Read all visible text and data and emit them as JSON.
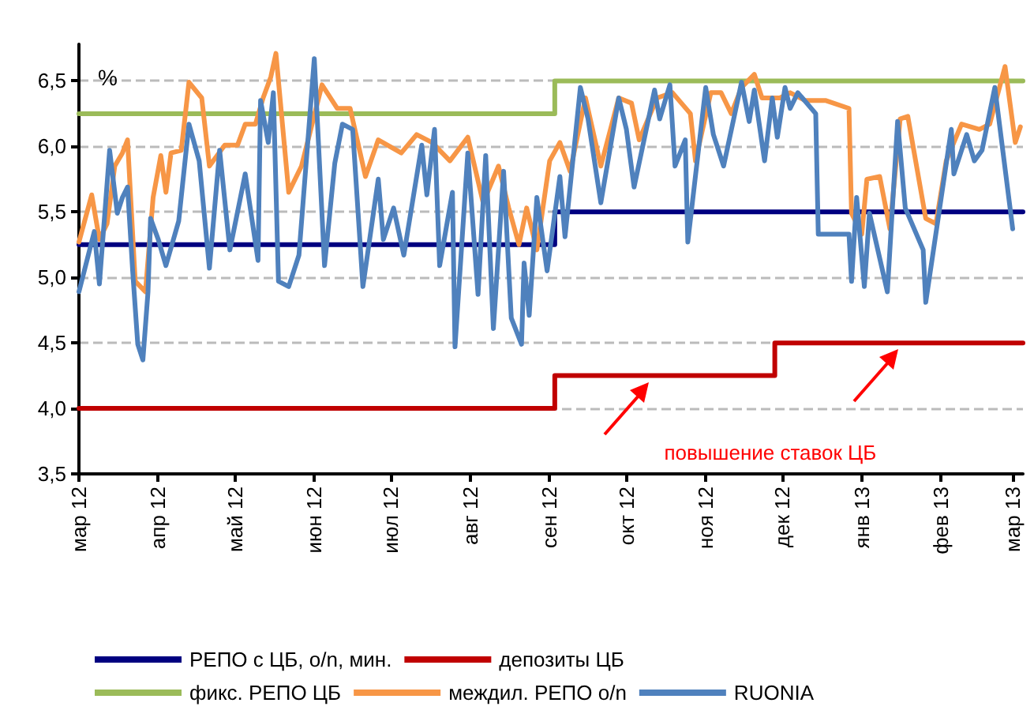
{
  "chart_data": {
    "type": "line",
    "ylabel": "%",
    "annotations": [
      "повышение ставок ЦБ"
    ],
    "xlim": [
      "2012-03-01",
      "2013-03-05"
    ],
    "xticks": [
      {
        "value": "2012-03-01",
        "label": "мар 12"
      },
      {
        "value": "2012-04-01",
        "label": "апр 12"
      },
      {
        "value": "2012-05-01",
        "label": "май 12"
      },
      {
        "value": "2012-06-01",
        "label": "июн 12"
      },
      {
        "value": "2012-07-01",
        "label": "июл 12"
      },
      {
        "value": "2012-08-01",
        "label": "авг 12"
      },
      {
        "value": "2012-09-01",
        "label": "сен 12"
      },
      {
        "value": "2012-10-01",
        "label": "окт 12"
      },
      {
        "value": "2012-11-01",
        "label": "ноя 12"
      },
      {
        "value": "2012-12-01",
        "label": "дек 12"
      },
      {
        "value": "2013-01-01",
        "label": "янв 13"
      },
      {
        "value": "2013-02-01",
        "label": "фев 13"
      },
      {
        "value": "2013-03-01",
        "label": "мар 13"
      }
    ],
    "ylim": [
      3.5,
      6.78
    ],
    "yticks": [
      {
        "value": 3.5,
        "label": "3,5"
      },
      {
        "value": 4,
        "label": "4,0"
      },
      {
        "value": 4.5,
        "label": "4,5"
      },
      {
        "value": 5,
        "label": "5,0"
      },
      {
        "value": 5.5,
        "label": "5,5"
      },
      {
        "value": 6,
        "label": "6,0"
      },
      {
        "value": 6.5,
        "label": "6,5"
      }
    ],
    "grid": "y",
    "legend": "bottom",
    "marker": "none",
    "line_style": "solid",
    "series": [
      {
        "name": "РЕПО с ЦБ, o/n, мин.",
        "type": "step",
        "color": "#000080",
        "x": [
          "2012-03-01",
          "2012-09-03",
          "2013-03-05"
        ],
        "values": [
          5.25,
          5.5,
          5.5
        ]
      },
      {
        "name": "депозиты ЦБ",
        "type": "step",
        "color": "#c00000",
        "x": [
          "2012-03-01",
          "2012-09-03",
          "2012-11-28",
          "2013-03-05"
        ],
        "values": [
          4.0,
          4.25,
          4.5,
          4.5
        ]
      },
      {
        "name": "фикс. РЕПО ЦБ",
        "type": "step",
        "color": "#9bbb59",
        "x": [
          "2012-03-01",
          "2012-09-03",
          "2013-03-05"
        ],
        "values": [
          6.25,
          6.5,
          6.5
        ]
      },
      {
        "name": "междил. РЕПО o/n",
        "color": "#f79646",
        "x": [
          "2012-03-01",
          "2012-03-06",
          "2012-03-09",
          "2012-03-12",
          "2012-03-15",
          "2012-03-18",
          "2012-03-20",
          "2012-03-23",
          "2012-03-27",
          "2012-03-30",
          "2012-04-02",
          "2012-04-04",
          "2012-04-06",
          "2012-04-10",
          "2012-04-13",
          "2012-04-18",
          "2012-04-21",
          "2012-04-27",
          "2012-05-02",
          "2012-05-05",
          "2012-05-09",
          "2012-05-12",
          "2012-05-15",
          "2012-05-17",
          "2012-05-22",
          "2012-05-27",
          "2012-06-04",
          "2012-06-10",
          "2012-06-15",
          "2012-06-21",
          "2012-06-26",
          "2012-07-05",
          "2012-07-11",
          "2012-07-17",
          "2012-07-24",
          "2012-07-31",
          "2012-08-06",
          "2012-08-12",
          "2012-08-16",
          "2012-08-20",
          "2012-08-23",
          "2012-08-27",
          "2012-09-01",
          "2012-09-05",
          "2012-09-09",
          "2012-09-15",
          "2012-09-21",
          "2012-09-28",
          "2012-10-03",
          "2012-10-06",
          "2012-10-13",
          "2012-10-19",
          "2012-10-26",
          "2012-10-28",
          "2012-11-03",
          "2012-11-07",
          "2012-11-11",
          "2012-11-15",
          "2012-11-20",
          "2012-11-23",
          "2012-11-30",
          "2012-12-04",
          "2012-12-10",
          "2012-12-18",
          "2012-12-27",
          "2012-12-28",
          "2013-01-01",
          "2013-01-03",
          "2013-01-08",
          "2013-01-12",
          "2013-01-16",
          "2013-01-19",
          "2013-01-26",
          "2013-01-30",
          "2013-02-03",
          "2013-02-09",
          "2013-02-16",
          "2013-02-20",
          "2013-02-26",
          "2013-03-02",
          "2013-03-04"
        ],
        "values": [
          5.27,
          5.63,
          5.29,
          5.41,
          5.85,
          5.95,
          6.05,
          4.97,
          4.89,
          5.61,
          5.93,
          5.65,
          5.95,
          5.97,
          6.49,
          6.37,
          5.85,
          6.01,
          6.01,
          6.17,
          6.17,
          6.37,
          6.53,
          6.71,
          5.65,
          5.85,
          6.47,
          6.29,
          6.29,
          5.77,
          6.05,
          5.95,
          6.09,
          6.03,
          5.89,
          6.07,
          5.57,
          5.85,
          5.53,
          5.25,
          5.53,
          5.21,
          5.89,
          6.03,
          5.81,
          6.37,
          5.85,
          6.37,
          6.33,
          6.05,
          6.37,
          6.41,
          6.25,
          5.89,
          6.41,
          6.41,
          6.25,
          6.45,
          6.55,
          6.37,
          6.37,
          6.41,
          6.35,
          6.35,
          6.29,
          5.49,
          5.33,
          5.75,
          5.77,
          5.37,
          6.21,
          6.23,
          5.45,
          5.41,
          5.89,
          6.17,
          6.13,
          6.17,
          6.61,
          6.03,
          6.15
        ]
      },
      {
        "name": "RUONIA",
        "color": "#4f81bd",
        "x": [
          "2012-03-01",
          "2012-03-07",
          "2012-03-09",
          "2012-03-13",
          "2012-03-16",
          "2012-03-18",
          "2012-03-20",
          "2012-03-22",
          "2012-03-24",
          "2012-03-26",
          "2012-03-28",
          "2012-03-29",
          "2012-04-01",
          "2012-04-04",
          "2012-04-09",
          "2012-04-13",
          "2012-04-17",
          "2012-04-21",
          "2012-04-25",
          "2012-04-29",
          "2012-05-05",
          "2012-05-10",
          "2012-05-11",
          "2012-05-14",
          "2012-05-16",
          "2012-05-18",
          "2012-05-22",
          "2012-05-26",
          "2012-06-01",
          "2012-06-05",
          "2012-06-09",
          "2012-06-12",
          "2012-06-16",
          "2012-06-20",
          "2012-06-26",
          "2012-06-28",
          "2012-07-02",
          "2012-07-06",
          "2012-07-13",
          "2012-07-15",
          "2012-07-18",
          "2012-07-20",
          "2012-07-25",
          "2012-07-26",
          "2012-07-31",
          "2012-08-04",
          "2012-08-07",
          "2012-08-10",
          "2012-08-14",
          "2012-08-17",
          "2012-08-21",
          "2012-08-22",
          "2012-08-24",
          "2012-08-27",
          "2012-08-31",
          "2012-09-05",
          "2012-09-07",
          "2012-09-13",
          "2012-09-16",
          "2012-09-21",
          "2012-09-28",
          "2012-10-01",
          "2012-10-04",
          "2012-10-12",
          "2012-10-14",
          "2012-10-18",
          "2012-10-20",
          "2012-10-24",
          "2012-10-25",
          "2012-11-01",
          "2012-11-04",
          "2012-11-08",
          "2012-11-15",
          "2012-11-18",
          "2012-11-20",
          "2012-11-24",
          "2012-11-27",
          "2012-11-29",
          "2012-12-02",
          "2012-12-04",
          "2012-12-07",
          "2012-12-14",
          "2012-12-15",
          "2012-12-27",
          "2012-12-28",
          "2012-12-30",
          "2013-01-02",
          "2013-01-04",
          "2013-01-11",
          "2013-01-15",
          "2013-01-18",
          "2013-01-25",
          "2013-01-26",
          "2013-02-05",
          "2013-02-06",
          "2013-02-11",
          "2013-02-14",
          "2013-02-17",
          "2013-02-22",
          "2013-03-01"
        ],
        "values": [
          4.89,
          5.35,
          4.95,
          5.97,
          5.49,
          5.61,
          5.69,
          5.05,
          4.49,
          4.37,
          4.89,
          5.45,
          5.29,
          5.09,
          5.43,
          6.17,
          5.89,
          5.07,
          5.97,
          5.21,
          5.79,
          5.13,
          6.35,
          6.03,
          6.41,
          4.97,
          4.93,
          5.17,
          6.67,
          5.09,
          5.87,
          6.17,
          6.13,
          4.93,
          5.75,
          5.29,
          5.53,
          5.17,
          6.01,
          5.63,
          6.13,
          5.09,
          5.65,
          4.47,
          5.95,
          4.87,
          5.93,
          4.61,
          5.81,
          4.69,
          4.49,
          5.11,
          4.71,
          5.61,
          5.05,
          5.77,
          5.31,
          6.45,
          6.21,
          5.57,
          6.37,
          6.13,
          5.69,
          6.43,
          6.21,
          6.47,
          5.85,
          6.05,
          5.27,
          6.45,
          6.09,
          5.85,
          6.49,
          6.19,
          6.43,
          5.89,
          6.37,
          6.07,
          6.45,
          6.29,
          6.41,
          6.25,
          5.33,
          5.33,
          4.97,
          5.61,
          4.93,
          5.49,
          4.89,
          6.19,
          5.53,
          5.21,
          4.81,
          6.13,
          5.79,
          6.09,
          5.89,
          5.97,
          6.45,
          5.37
        ]
      }
    ]
  }
}
